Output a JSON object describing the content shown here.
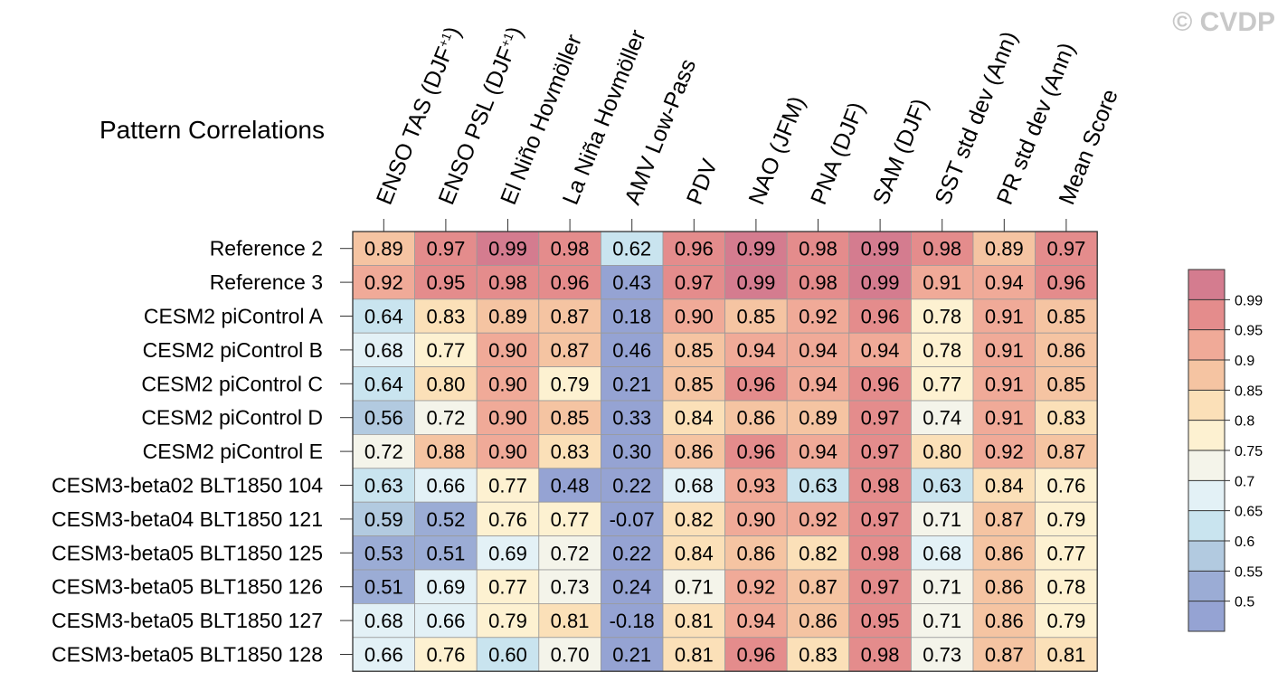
{
  "watermark": "© CVDP",
  "chart_data": {
    "type": "heatmap",
    "title": "Pattern Correlations",
    "columns": [
      {
        "pre": "ENSO TAS (DJF",
        "sup": "+1",
        "post": ")"
      },
      {
        "pre": "ENSO PSL (DJF",
        "sup": "+1",
        "post": ")"
      },
      {
        "pre": "El Niño Hovmöller",
        "sup": "",
        "post": ""
      },
      {
        "pre": "La Niña Hovmöller",
        "sup": "",
        "post": ""
      },
      {
        "pre": "AMV Low-Pass",
        "sup": "",
        "post": ""
      },
      {
        "pre": "PDV",
        "sup": "",
        "post": ""
      },
      {
        "pre": "NAO (JFM)",
        "sup": "",
        "post": ""
      },
      {
        "pre": "PNA (DJF)",
        "sup": "",
        "post": ""
      },
      {
        "pre": "SAM (DJF)",
        "sup": "",
        "post": ""
      },
      {
        "pre": "SST std dev (Ann)",
        "sup": "",
        "post": ""
      },
      {
        "pre": "PR std dev (Ann)",
        "sup": "",
        "post": ""
      },
      {
        "pre": "Mean Score",
        "sup": "",
        "post": ""
      }
    ],
    "rows": [
      "Reference 2",
      "Reference 3",
      "CESM2 piControl A",
      "CESM2 piControl B",
      "CESM2 piControl C",
      "CESM2 piControl D",
      "CESM2 piControl E",
      "CESM3-beta02 BLT1850 104",
      "CESM3-beta04 BLT1850 121",
      "CESM3-beta05 BLT1850 125",
      "CESM3-beta05 BLT1850 126",
      "CESM3-beta05 BLT1850 127",
      "CESM3-beta05 BLT1850 128"
    ],
    "values": [
      [
        "0.89",
        "0.97",
        "0.99",
        "0.98",
        "0.62",
        "0.96",
        "0.99",
        "0.98",
        "0.99",
        "0.98",
        "0.89",
        "0.97"
      ],
      [
        "0.92",
        "0.95",
        "0.98",
        "0.96",
        "0.43",
        "0.97",
        "0.99",
        "0.98",
        "0.99",
        "0.91",
        "0.94",
        "0.96"
      ],
      [
        "0.64",
        "0.83",
        "0.89",
        "0.87",
        "0.18",
        "0.90",
        "0.85",
        "0.92",
        "0.96",
        "0.78",
        "0.91",
        "0.85"
      ],
      [
        "0.68",
        "0.77",
        "0.90",
        "0.87",
        "0.46",
        "0.85",
        "0.94",
        "0.94",
        "0.94",
        "0.78",
        "0.91",
        "0.86"
      ],
      [
        "0.64",
        "0.80",
        "0.90",
        "0.79",
        "0.21",
        "0.85",
        "0.96",
        "0.94",
        "0.96",
        "0.77",
        "0.91",
        "0.85"
      ],
      [
        "0.56",
        "0.72",
        "0.90",
        "0.85",
        "0.33",
        "0.84",
        "0.86",
        "0.89",
        "0.97",
        "0.74",
        "0.91",
        "0.83"
      ],
      [
        "0.72",
        "0.88",
        "0.90",
        "0.83",
        "0.30",
        "0.86",
        "0.96",
        "0.94",
        "0.97",
        "0.80",
        "0.92",
        "0.87"
      ],
      [
        "0.63",
        "0.66",
        "0.77",
        "0.48",
        "0.22",
        "0.68",
        "0.93",
        "0.63",
        "0.98",
        "0.63",
        "0.84",
        "0.76"
      ],
      [
        "0.59",
        "0.52",
        "0.76",
        "0.77",
        "-0.07",
        "0.82",
        "0.90",
        "0.92",
        "0.97",
        "0.71",
        "0.87",
        "0.79"
      ],
      [
        "0.53",
        "0.51",
        "0.69",
        "0.72",
        "0.22",
        "0.84",
        "0.86",
        "0.82",
        "0.98",
        "0.68",
        "0.86",
        "0.77"
      ],
      [
        "0.51",
        "0.69",
        "0.77",
        "0.73",
        "0.24",
        "0.71",
        "0.92",
        "0.87",
        "0.97",
        "0.71",
        "0.86",
        "0.78"
      ],
      [
        "0.68",
        "0.66",
        "0.79",
        "0.81",
        "-0.18",
        "0.81",
        "0.94",
        "0.86",
        "0.95",
        "0.71",
        "0.86",
        "0.79"
      ],
      [
        "0.66",
        "0.76",
        "0.60",
        "0.70",
        "0.21",
        "0.81",
        "0.96",
        "0.83",
        "0.98",
        "0.73",
        "0.87",
        "0.81"
      ]
    ],
    "colorbar": {
      "levels": [
        "0.99",
        "0.95",
        "0.9",
        "0.85",
        "0.8",
        "0.75",
        "0.7",
        "0.65",
        "0.6",
        "0.55",
        "0.5"
      ],
      "colors": [
        "#d47c8f",
        "#e48c8c",
        "#f0aa98",
        "#f5c4a2",
        "#fbe0b8",
        "#fdf1d1",
        "#f4f4ea",
        "#e3f1f6",
        "#c9e4ef",
        "#b2cae0",
        "#9bacd5",
        "#95a3d3"
      ]
    },
    "grid": true,
    "legend": "right"
  }
}
